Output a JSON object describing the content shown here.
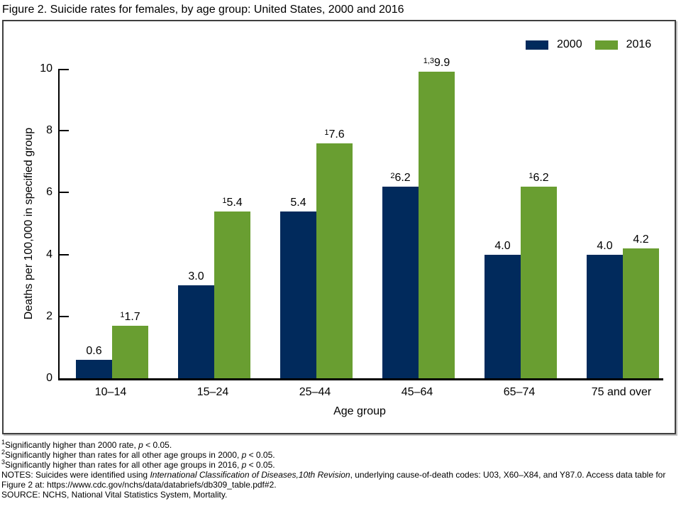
{
  "chart_data": {
    "type": "bar",
    "title": "Figure 2. Suicide rates for females, by age group: United States, 2000 and 2016",
    "categories": [
      "10–14",
      "15–24",
      "25–44",
      "45–64",
      "65–74",
      "75 and over"
    ],
    "series": [
      {
        "name": "2000",
        "color": "#012a5c",
        "values": [
          0.6,
          3.0,
          5.4,
          6.2,
          4.0,
          4.0
        ],
        "value_labels": [
          "0.6",
          "3.0",
          "5.4",
          "6.2",
          "4.0",
          "4.0"
        ],
        "label_superscripts": [
          "",
          "",
          "",
          "2",
          "",
          ""
        ]
      },
      {
        "name": "2016",
        "color": "#699e31",
        "values": [
          1.7,
          5.4,
          7.6,
          9.9,
          6.2,
          4.2
        ],
        "value_labels": [
          "1.7",
          "5.4",
          "7.6",
          "9.9",
          "6.2",
          "4.2"
        ],
        "label_superscripts": [
          "1",
          "1",
          "1",
          "1,3",
          "1",
          ""
        ]
      }
    ],
    "xlabel": "Age group",
    "ylabel": "Deaths per 100,000 in specified group",
    "ylim": [
      0,
      10
    ],
    "yticks": [
      0,
      2,
      4,
      6,
      8,
      10
    ],
    "legend_position": "top-right",
    "grid": false
  },
  "footnotes": [
    {
      "segments": [
        {
          "text": "1",
          "sup": true
        },
        {
          "text": "Significantly higher than 2000 rate, "
        },
        {
          "text": "p",
          "italic": true
        },
        {
          "text": " < 0.05."
        }
      ]
    },
    {
      "segments": [
        {
          "text": "2",
          "sup": true
        },
        {
          "text": "Significantly higher than rates for all other age groups in 2000, "
        },
        {
          "text": "p",
          "italic": true
        },
        {
          "text": " < 0.05."
        }
      ]
    },
    {
      "segments": [
        {
          "text": "3",
          "sup": true
        },
        {
          "text": "Significantly higher than rates for all other age groups in 2016, "
        },
        {
          "text": "p",
          "italic": true
        },
        {
          "text": " < 0.05."
        }
      ]
    },
    {
      "segments": [
        {
          "text": "NOTES: Suicides were identified using "
        },
        {
          "text": "International Classification of Diseases,10th Revision",
          "italic": true
        },
        {
          "text": ", underlying cause-of-death codes: U03, X60–X84, and Y87.0. Access data table for Figure 2 at: https://www.cdc.gov/nchs/data/databriefs/db309_table.pdf#2."
        }
      ]
    },
    {
      "segments": [
        {
          "text": "SOURCE: NCHS, National Vital Statistics System, Mortality."
        }
      ]
    }
  ]
}
